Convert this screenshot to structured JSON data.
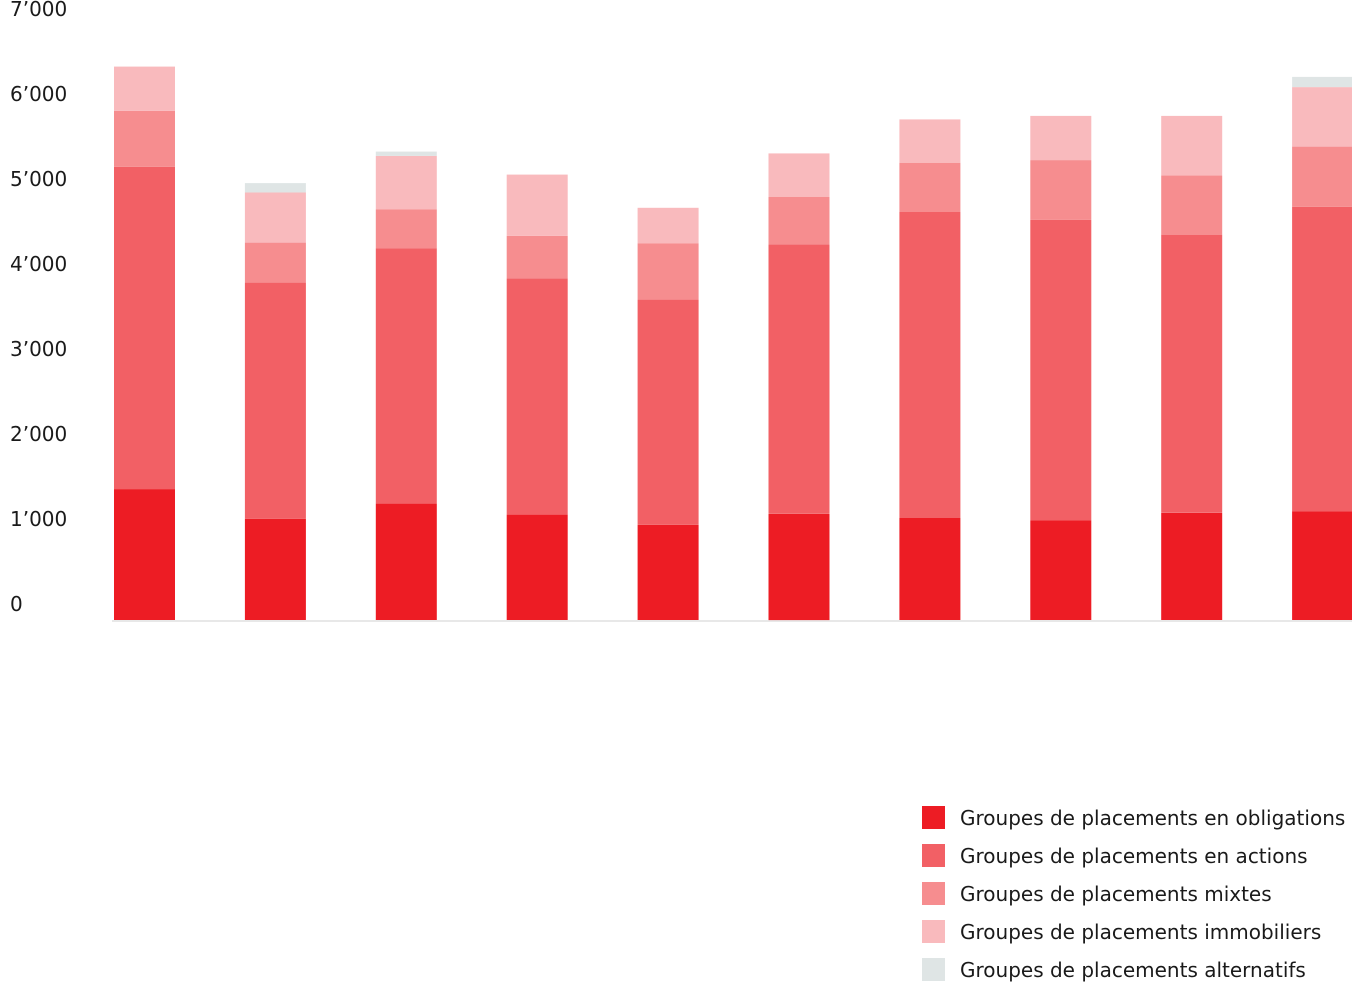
{
  "chart_data": {
    "type": "bar",
    "stacked": true,
    "title": "",
    "xlabel": "",
    "ylabel": "",
    "ylim": [
      0,
      7000
    ],
    "y_ticks": [
      0,
      1000,
      2000,
      3000,
      4000,
      5000,
      6000,
      7000
    ],
    "y_tick_labels": [
      "0",
      "1’000",
      "2’000",
      "3’000",
      "4’000",
      "5’000",
      "6’000",
      "7’000"
    ],
    "grid": false,
    "legend_position": "bottom-right",
    "categories": [
      "",
      "",
      "",
      "",
      "",
      "",
      "",
      "",
      "",
      ""
    ],
    "series": [
      {
        "name": "Groupes de placements en obligations",
        "color": "#ed1c24",
        "values": [
          1540,
          1190,
          1370,
          1240,
          1120,
          1250,
          1200,
          1170,
          1260,
          1280
        ]
      },
      {
        "name": "Groupes de placements en actions",
        "color": "#f26065",
        "values": [
          3790,
          2780,
          3000,
          2780,
          2650,
          3170,
          3600,
          3540,
          3270,
          3580
        ]
      },
      {
        "name": "Groupes de placements mixtes",
        "color": "#f68d8f",
        "values": [
          660,
          470,
          460,
          500,
          660,
          560,
          580,
          700,
          700,
          710
        ]
      },
      {
        "name": "Groupes de placements immobiliers",
        "color": "#f9babd",
        "values": [
          520,
          590,
          630,
          720,
          420,
          510,
          510,
          520,
          700,
          700
        ]
      },
      {
        "name": "Groupes de placements alternatifs",
        "color": "#dfe5e5",
        "values": [
          0,
          110,
          50,
          0,
          0,
          0,
          0,
          0,
          0,
          120
        ]
      }
    ]
  }
}
